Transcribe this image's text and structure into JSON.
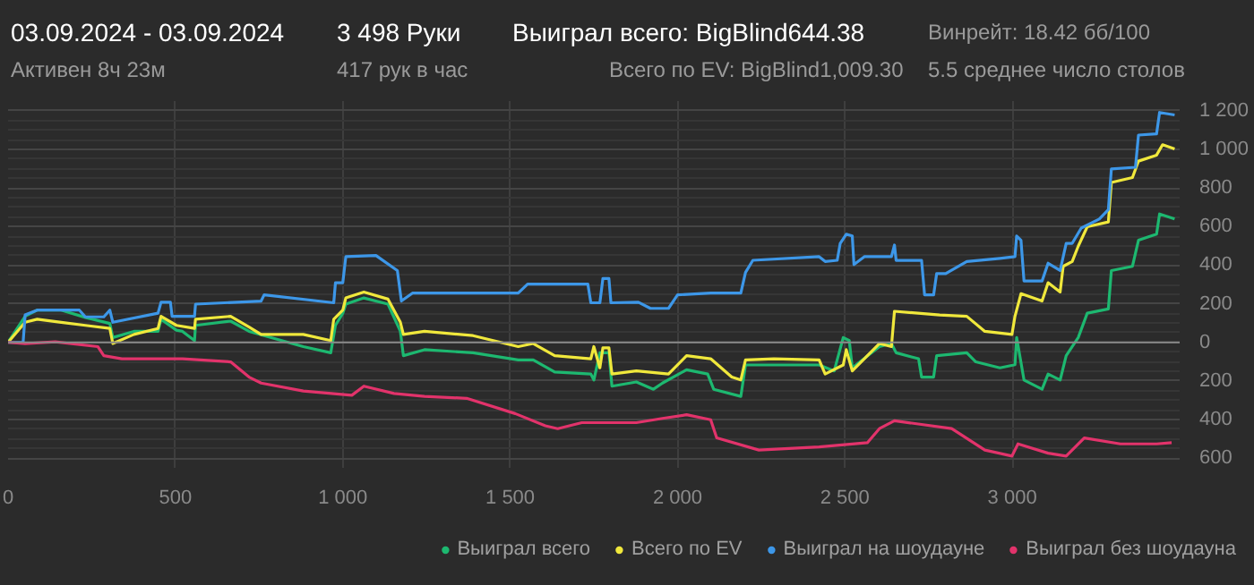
{
  "chart_data": {
    "type": "line",
    "title": "03.09.2024 - 03.09.2024",
    "subtitle": "Активен 8ч 23м",
    "annotations": [
      "3 498 Руки",
      "417 рук в час",
      "Выиграл всего: BigBlind644.38",
      "Всего по EV: BigBlind1,009.30",
      "Винрейт: 18.42 бб/100",
      "5.5 среднее число столов"
    ],
    "xlim": [
      0,
      3500
    ],
    "ylim": [
      -650,
      1250
    ],
    "xticks": [
      0,
      500,
      {
        "value": 1000,
        "label": "1 000"
      },
      {
        "value": 1500,
        "label": "1 500"
      },
      {
        "value": 2000,
        "label": "2 000"
      },
      {
        "value": 2500,
        "label": "2 500"
      },
      {
        "value": 3000,
        "label": "3 000"
      }
    ],
    "yticks": [
      {
        "value": -600,
        "label": "600"
      },
      {
        "value": -400,
        "label": "400"
      },
      {
        "value": -200,
        "label": "200"
      },
      0,
      200,
      400,
      600,
      800,
      {
        "value": 1000,
        "label": "1 000"
      },
      {
        "value": 1200,
        "label": "1 200"
      }
    ],
    "grid": true,
    "legend": "bottom",
    "marker": "none",
    "line_style": "solid",
    "ref_lines": [
      {
        "axis": "y",
        "value": 0,
        "color": "#8a8a8a"
      }
    ],
    "series": [
      {
        "name": "Выиграл всего",
        "color": "#1db870",
        "x": [
          0,
          51,
          87,
          159,
          231,
          304,
          313,
          376,
          448,
          457,
          503,
          521,
          557,
          560,
          665,
          720,
          882,
          964,
          978,
          1000,
          1009,
          1063,
          1135,
          1172,
          1181,
          1244,
          1389,
          1524,
          1569,
          1633,
          1741,
          1750,
          1768,
          1795,
          1804,
          1877,
          1928,
          1955,
          2027,
          2090,
          2108,
          2189,
          2203,
          2288,
          2423,
          2468,
          2495,
          2513,
          2522,
          2603,
          2639,
          2653,
          2720,
          2729,
          2765,
          2774,
          2864,
          2891,
          2963,
          3008,
          3013,
          3035,
          3089,
          3107,
          3143,
          3161,
          3197,
          3224,
          3287,
          3296,
          3359,
          3377,
          3431,
          3440,
          3485
        ],
        "values": [
          0,
          135,
          167,
          167,
          129,
          98,
          25,
          57,
          57,
          120,
          63,
          57,
          9,
          88,
          110,
          57,
          -22,
          -54,
          88,
          151,
          198,
          230,
          198,
          57,
          -69,
          -38,
          -54,
          -91,
          -91,
          -154,
          -164,
          -195,
          -54,
          -54,
          -227,
          -205,
          -243,
          -211,
          -142,
          -164,
          -243,
          -280,
          -117,
          -117,
          -117,
          -148,
          25,
          9,
          -132,
          -22,
          -6,
          -54,
          -85,
          -180,
          -180,
          -69,
          -54,
          -101,
          -132,
          -116,
          25,
          -195,
          -243,
          -164,
          -195,
          -69,
          25,
          151,
          173,
          372,
          394,
          529,
          561,
          665,
          639
        ]
      },
      {
        "name": "Всего по EV",
        "color": "#f0e83c",
        "x": [
          0,
          51,
          87,
          159,
          231,
          304,
          313,
          376,
          448,
          457,
          503,
          557,
          560,
          665,
          720,
          756,
          882,
          964,
          973,
          1000,
          1009,
          1063,
          1135,
          1172,
          1181,
          1244,
          1389,
          1524,
          1569,
          1633,
          1741,
          1750,
          1768,
          1777,
          1795,
          1804,
          1877,
          1973,
          2027,
          2099,
          2162,
          2189,
          2203,
          2288,
          2423,
          2441,
          2495,
          2504,
          2522,
          2603,
          2639,
          2648,
          2783,
          2864,
          2918,
          2999,
          3008,
          3026,
          3089,
          3107,
          3143,
          3152,
          3179,
          3197,
          3224,
          3287,
          3296,
          3359,
          3377,
          3431,
          3449,
          3485
        ],
        "values": [
          0,
          104,
          120,
          104,
          88,
          72,
          -6,
          41,
          72,
          135,
          88,
          72,
          120,
          135,
          79,
          41,
          41,
          9,
          120,
          167,
          230,
          261,
          224,
          104,
          41,
          57,
          35,
          -22,
          -6,
          -69,
          -85,
          -22,
          -132,
          -28,
          -28,
          -164,
          -148,
          -164,
          -69,
          -85,
          -180,
          -195,
          -91,
          -85,
          -91,
          -164,
          -117,
          -38,
          -148,
          -6,
          -22,
          161,
          142,
          135,
          57,
          41,
          135,
          252,
          214,
          309,
          261,
          394,
          419,
          498,
          599,
          624,
          828,
          854,
          939,
          970,
          1024,
          1002
        ]
      },
      {
        "name": "Выиграл на шоудауне",
        "color": "#3d97e8",
        "x": [
          0,
          45,
          51,
          87,
          213,
          231,
          286,
          304,
          313,
          448,
          457,
          485,
          490,
          557,
          560,
          756,
          765,
          973,
          978,
          1000,
          1009,
          1099,
          1163,
          1175,
          1208,
          1524,
          1552,
          1732,
          1741,
          1768,
          1777,
          1795,
          1801,
          1883,
          1919,
          1973,
          2000,
          2099,
          2189,
          2203,
          2225,
          2423,
          2441,
          2477,
          2486,
          2504,
          2522,
          2527,
          2558,
          2639,
          2648,
          2653,
          2729,
          2738,
          2765,
          2774,
          2801,
          2864,
          2963,
          3008,
          3013,
          3026,
          3035,
          3089,
          3107,
          3143,
          3161,
          3179,
          3206,
          3260,
          3287,
          3296,
          3368,
          3377,
          3431,
          3440,
          3485
        ],
        "values": [
          0,
          0,
          142,
          167,
          167,
          132,
          132,
          167,
          104,
          151,
          208,
          208,
          135,
          135,
          198,
          214,
          246,
          205,
          309,
          309,
          444,
          450,
          372,
          214,
          255,
          255,
          302,
          302,
          205,
          205,
          331,
          331,
          205,
          208,
          176,
          176,
          246,
          255,
          255,
          362,
          425,
          444,
          419,
          425,
          513,
          560,
          551,
          403,
          444,
          444,
          504,
          425,
          425,
          246,
          246,
          356,
          356,
          419,
          435,
          444,
          551,
          529,
          318,
          318,
          410,
          372,
          513,
          513,
          592,
          639,
          687,
          898,
          907,
          1074,
          1080,
          1191,
          1178
        ]
      },
      {
        "name": "Выиграл без шоудауна",
        "color": "#e2336b",
        "x": [
          0,
          51,
          141,
          268,
          286,
          340,
          521,
          665,
          720,
          756,
          882,
          1027,
          1063,
          1153,
          1244,
          1370,
          1515,
          1605,
          1642,
          1714,
          1877,
          1955,
          2027,
          2099,
          2117,
          2243,
          2423,
          2567,
          2603,
          2648,
          2819,
          2918,
          2999,
          3017,
          3107,
          3161,
          3215,
          3323,
          3431,
          3476
        ],
        "values": [
          0,
          -6,
          3,
          -22,
          -69,
          -85,
          -85,
          -101,
          -180,
          -211,
          -252,
          -274,
          -227,
          -265,
          -280,
          -290,
          -369,
          -432,
          -447,
          -416,
          -416,
          -394,
          -375,
          -401,
          -495,
          -558,
          -542,
          -520,
          -447,
          -406,
          -447,
          -558,
          -589,
          -526,
          -574,
          -589,
          -495,
          -526,
          -526,
          -520
        ]
      }
    ]
  }
}
